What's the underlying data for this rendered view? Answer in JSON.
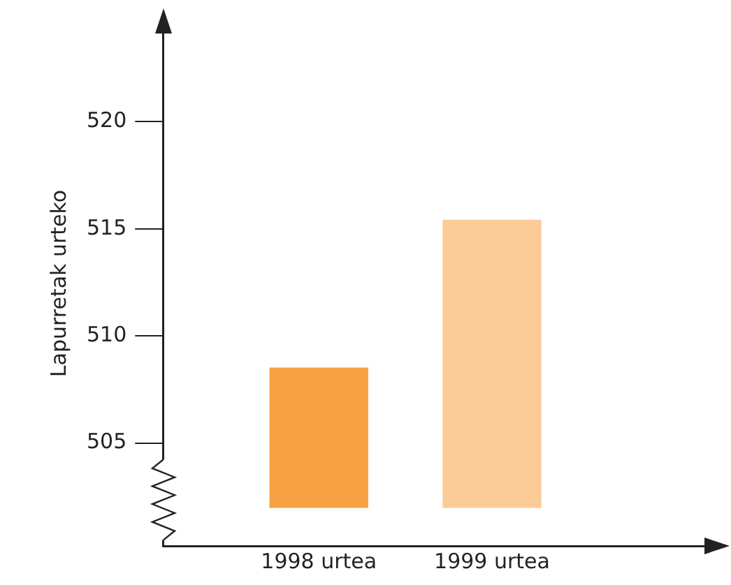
{
  "chart_data": {
    "type": "bar",
    "ylabel": "Lapurretak urteko",
    "categories": [
      "1998 urtea",
      "1999 urtea"
    ],
    "values": [
      6.5,
      13.4
    ],
    "base": [
      502,
      502
    ],
    "colors": [
      "#f7a142",
      "#fbcb98"
    ],
    "ylim": [
      500.2,
      524.7
    ],
    "yticks": [
      505,
      510,
      515,
      520
    ],
    "grid": false,
    "legend": false
  }
}
